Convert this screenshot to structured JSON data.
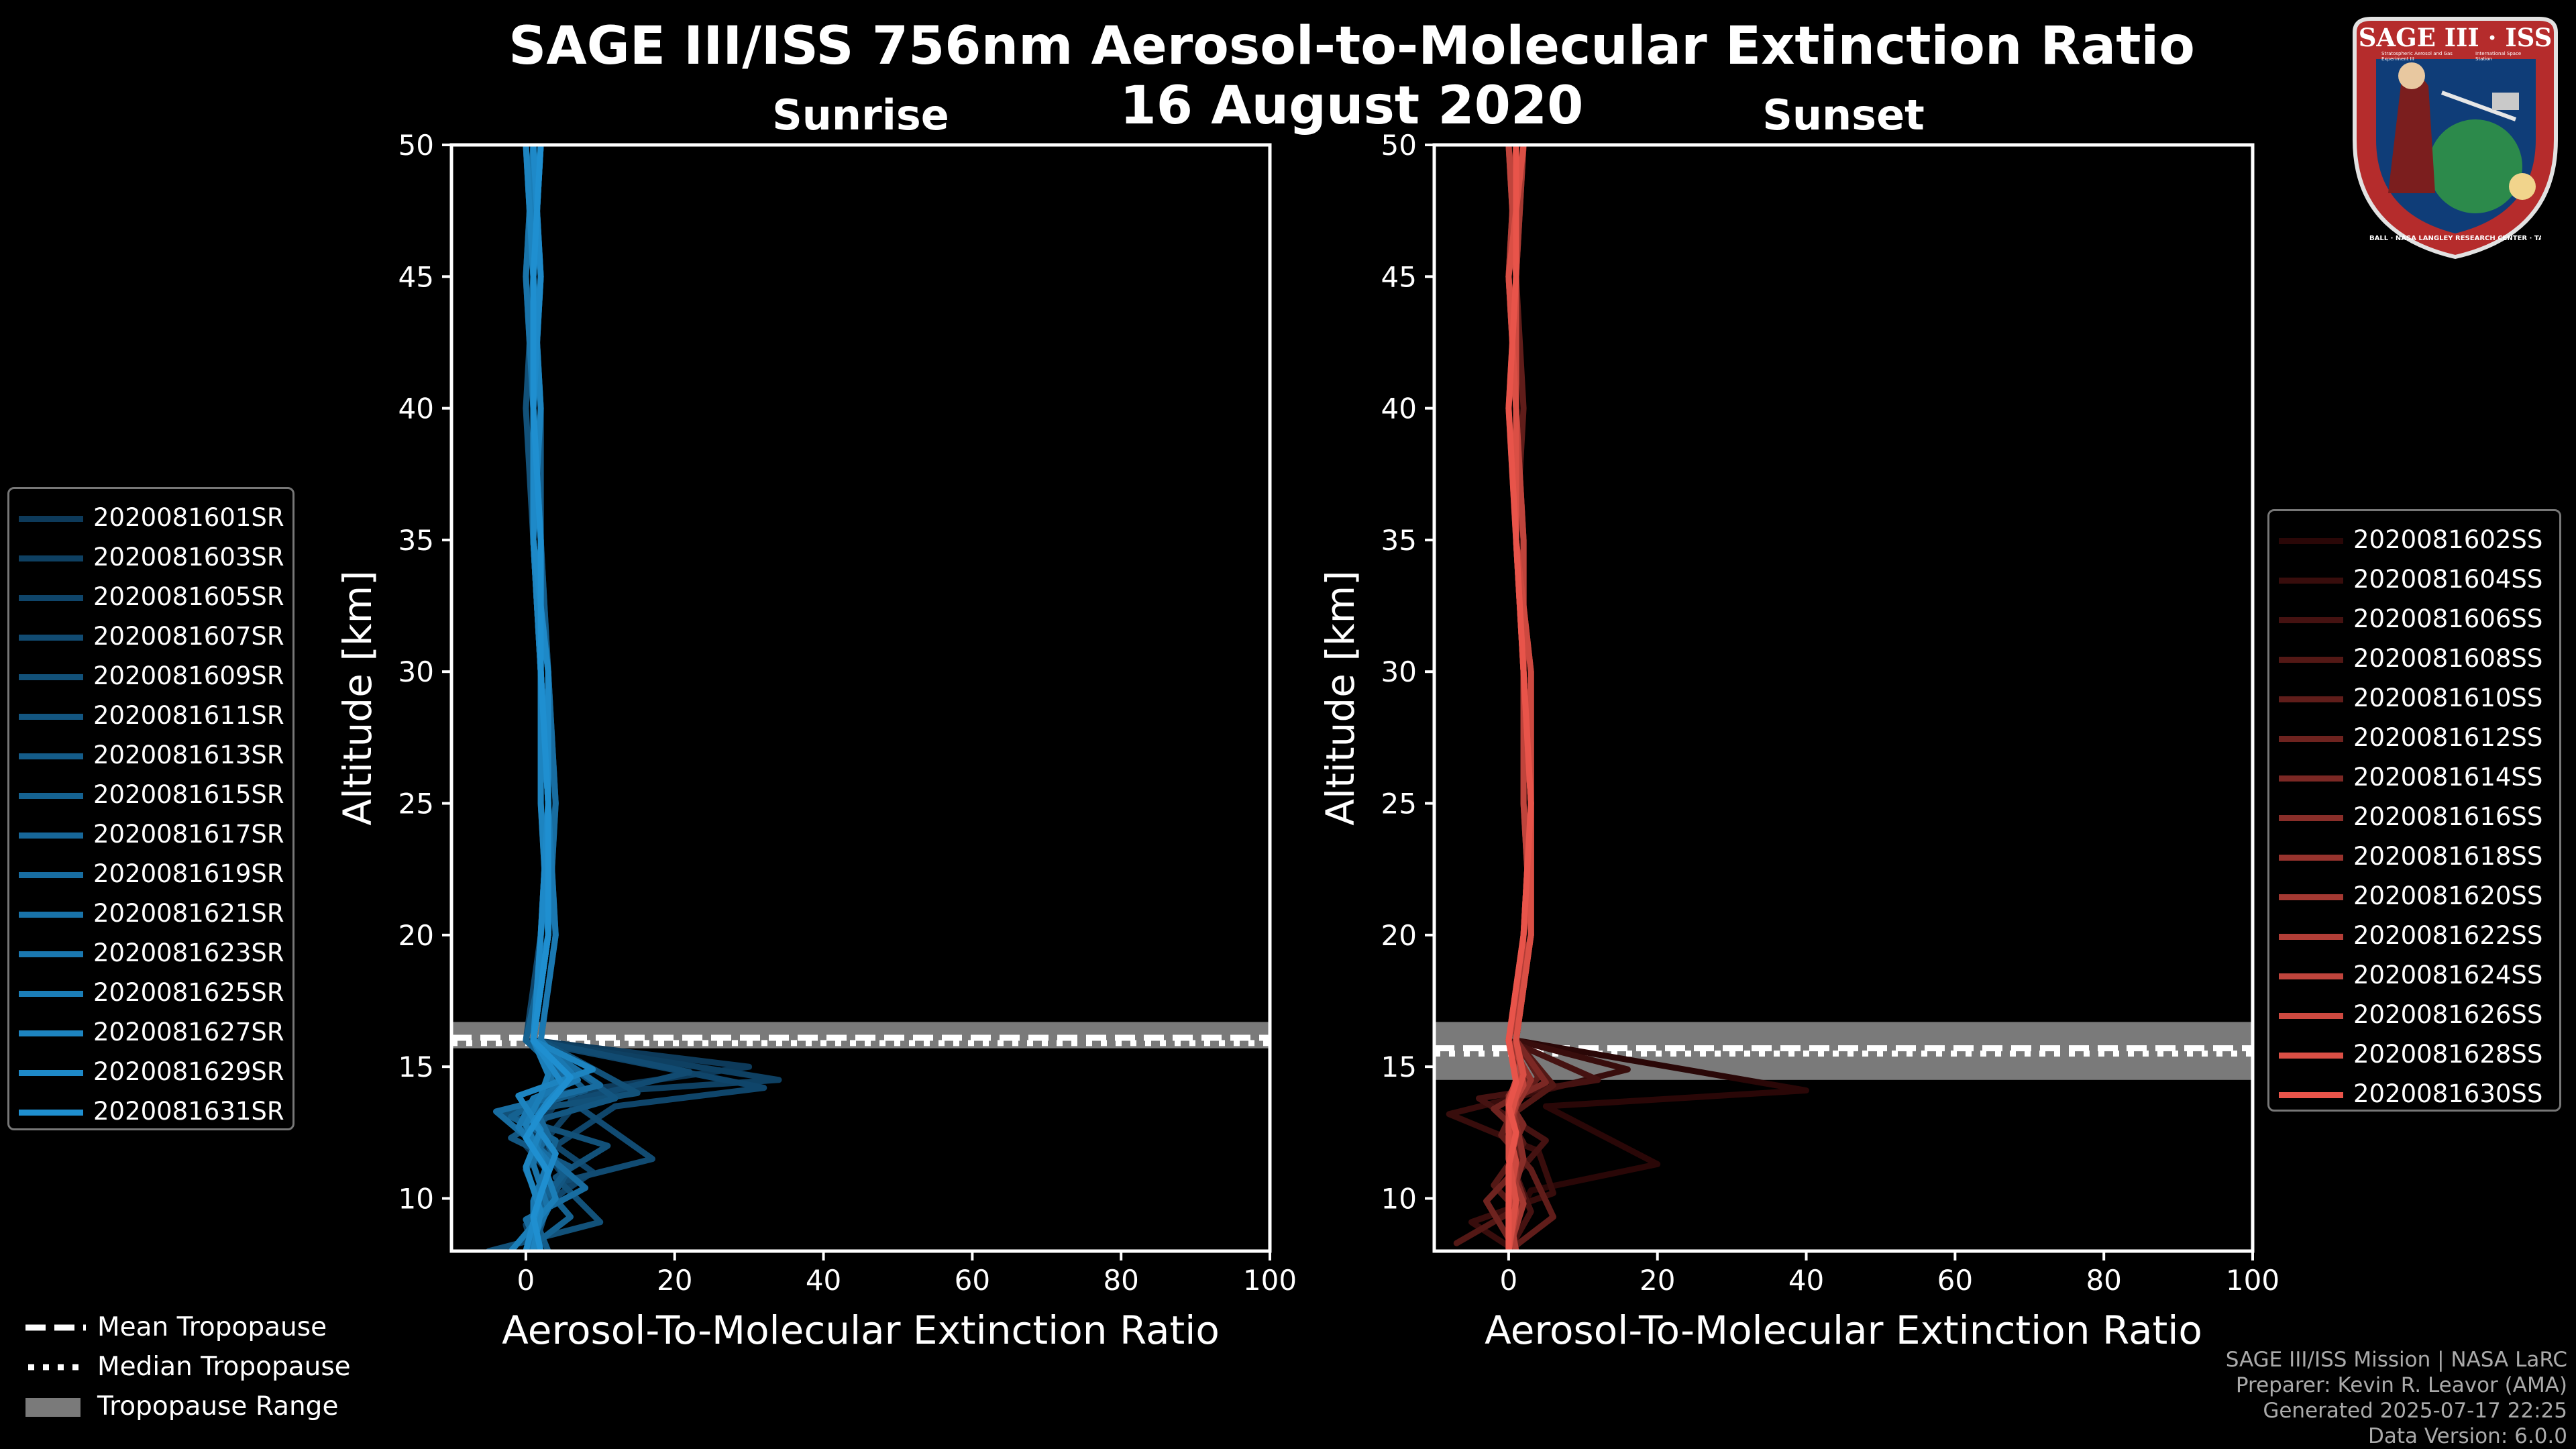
{
  "title_line1": "SAGE III/ISS 756nm Aerosol-to-Molecular Extinction Ratio",
  "title_line2": "16 August 2020",
  "logo": {
    "line1": "SAGE III · ISS",
    "ring_text": "BALL · NASA LANGLEY RESEARCH CENTER · TAS-I · ESA",
    "sub1": "Stratospheric Aerosol and Gas Experiment III",
    "sub2": "International Space Station"
  },
  "footer": {
    "line1": "SAGE III/ISS Mission | NASA LaRC",
    "line2": "Preparer: Kevin R. Leavor (AMA)",
    "line3": "Generated 2025-07-17 22:25",
    "line4": "Data Version: 6.0.0"
  },
  "bottom_legend": {
    "mean": "Mean Tropopause",
    "median": "Median Tropopause",
    "range": "Tropopause Range",
    "range_color": "#7a7a7a"
  },
  "chart_data": [
    {
      "type": "line",
      "title": "Sunrise",
      "xlabel": "Aerosol-To-Molecular Extinction Ratio",
      "ylabel": "Altitude [km]",
      "xlim": [
        -10,
        100
      ],
      "ylim": [
        8,
        50
      ],
      "xticks": [
        0,
        20,
        40,
        60,
        80,
        100
      ],
      "yticks": [
        10,
        15,
        20,
        25,
        30,
        35,
        40,
        45,
        50
      ],
      "tropopause": {
        "range": [
          15.7,
          16.7
        ],
        "mean": 16.1,
        "median": 15.9
      },
      "color_start": "#0d3a5a",
      "color_end": "#1f8fd0",
      "series": [
        {
          "name": "2020081601SR",
          "x": [
            1,
            1,
            2,
            2,
            3,
            4,
            2,
            1,
            30,
            5,
            0,
            3,
            1,
            0
          ],
          "y": [
            50,
            45,
            40,
            35,
            30,
            25,
            20,
            16,
            15,
            14,
            12,
            11,
            9,
            8
          ]
        },
        {
          "name": "2020081603SR",
          "x": [
            2,
            1,
            1,
            1,
            2,
            3,
            3,
            1,
            34,
            8,
            2,
            6,
            0,
            1
          ],
          "y": [
            50,
            45,
            40,
            35,
            30,
            25,
            20,
            16,
            14.5,
            14,
            12,
            10.5,
            9,
            8
          ]
        },
        {
          "name": "2020081605SR",
          "x": [
            0,
            1,
            1,
            2,
            2,
            3,
            2,
            0,
            32,
            12,
            4,
            9,
            1,
            2
          ],
          "y": [
            50,
            45,
            40,
            35,
            30,
            25,
            20,
            16,
            14.2,
            13.5,
            12,
            11,
            9.5,
            8
          ]
        },
        {
          "name": "2020081607SR",
          "x": [
            1,
            2,
            1,
            1,
            3,
            4,
            3,
            1,
            22,
            6,
            17,
            3,
            2,
            0
          ],
          "y": [
            50,
            45,
            40,
            35,
            30,
            25,
            20,
            16,
            14.8,
            13.7,
            11.5,
            10.5,
            9,
            8
          ]
        },
        {
          "name": "2020081609SR",
          "x": [
            2,
            1,
            0,
            1,
            2,
            3,
            4,
            2,
            15,
            -3,
            11,
            4,
            10,
            -5
          ],
          "y": [
            50,
            45,
            40,
            35,
            30,
            25,
            20,
            16,
            14,
            13.2,
            12,
            10.8,
            9.1,
            8
          ]
        },
        {
          "name": "2020081611SR",
          "x": [
            1,
            0,
            1,
            1,
            2,
            3,
            3,
            1,
            12,
            2,
            -2,
            6,
            3,
            1
          ],
          "y": [
            50,
            45,
            40,
            35,
            30,
            25,
            20,
            16,
            13.8,
            13,
            12.3,
            11.2,
            9.8,
            8
          ]
        },
        {
          "name": "2020081613SR",
          "x": [
            1,
            1,
            2,
            2,
            3,
            3,
            2,
            1,
            8,
            0,
            2,
            5,
            1,
            3
          ],
          "y": [
            50,
            45,
            40,
            35,
            30,
            25,
            20,
            16,
            14.1,
            13.4,
            12.6,
            10.9,
            9.4,
            8
          ]
        },
        {
          "name": "2020081615SR",
          "x": [
            0,
            1,
            1,
            1,
            2,
            2,
            3,
            0,
            6,
            -2,
            4,
            2,
            6,
            0
          ],
          "y": [
            50,
            45,
            40,
            35,
            30,
            25,
            20,
            16,
            14.4,
            13.1,
            12.2,
            10.6,
            9.3,
            8
          ]
        },
        {
          "name": "2020081617SR",
          "x": [
            2,
            1,
            1,
            2,
            2,
            3,
            2,
            1,
            5,
            1,
            3,
            0,
            2,
            1
          ],
          "y": [
            50,
            45,
            40,
            35,
            30,
            25,
            20,
            16,
            14.6,
            13.6,
            12.4,
            11.1,
            9.7,
            8
          ]
        },
        {
          "name": "2020081619SR",
          "x": [
            1,
            2,
            1,
            1,
            3,
            4,
            3,
            1,
            10,
            -4,
            1,
            8,
            0,
            2
          ],
          "y": [
            50,
            45,
            40,
            35,
            30,
            25,
            20,
            16,
            14.3,
            13.3,
            12.1,
            10.4,
            9.2,
            8
          ]
        },
        {
          "name": "2020081621SR",
          "x": [
            1,
            0,
            1,
            1,
            2,
            3,
            3,
            1,
            4,
            0,
            2,
            1,
            3,
            0
          ],
          "y": [
            50,
            45,
            40,
            35,
            30,
            25,
            20,
            16,
            14.2,
            13.5,
            12.5,
            11.3,
            9.6,
            8
          ]
        },
        {
          "name": "2020081623SR",
          "x": [
            2,
            1,
            1,
            2,
            2,
            3,
            4,
            2,
            7,
            1,
            -1,
            3,
            1,
            1
          ],
          "y": [
            50,
            45,
            40,
            35,
            30,
            25,
            20,
            16,
            14.5,
            13.8,
            12.7,
            11.4,
            9.9,
            8
          ]
        },
        {
          "name": "2020081625SR",
          "x": [
            1,
            1,
            1,
            1,
            2,
            3,
            3,
            1,
            3,
            2,
            0,
            2,
            4,
            -2
          ],
          "y": [
            50,
            45,
            40,
            35,
            30,
            25,
            20,
            16,
            14.7,
            13.9,
            12.8,
            11.6,
            10,
            8
          ]
        },
        {
          "name": "2020081627SR",
          "x": [
            0,
            1,
            2,
            1,
            2,
            2,
            3,
            1,
            9,
            -1,
            2,
            0,
            2,
            1
          ],
          "y": [
            50,
            45,
            40,
            35,
            30,
            25,
            20,
            16,
            14.9,
            13.9,
            12.6,
            11.2,
            9.5,
            8
          ]
        },
        {
          "name": "2020081629SR",
          "x": [
            1,
            2,
            1,
            1,
            3,
            3,
            2,
            1,
            5,
            3,
            1,
            4,
            2,
            0
          ],
          "y": [
            50,
            45,
            40,
            35,
            30,
            25,
            20,
            16,
            14.3,
            13.7,
            12.9,
            11.7,
            10.2,
            8
          ]
        },
        {
          "name": "2020081631SR",
          "x": [
            2,
            1,
            1,
            2,
            2,
            3,
            3,
            1,
            6,
            2,
            0,
            3,
            1,
            2
          ],
          "y": [
            50,
            45,
            40,
            35,
            30,
            25,
            20,
            16,
            14.6,
            13.2,
            12.3,
            11,
            9.3,
            8
          ]
        }
      ]
    },
    {
      "type": "line",
      "title": "Sunset",
      "xlabel": "Aerosol-To-Molecular Extinction Ratio",
      "ylabel": "Altitude [km]",
      "xlim": [
        -10,
        100
      ],
      "ylim": [
        8,
        50
      ],
      "xticks": [
        0,
        20,
        40,
        60,
        80,
        100
      ],
      "yticks": [
        10,
        15,
        20,
        25,
        30,
        35,
        40,
        45,
        50
      ],
      "tropopause": {
        "range": [
          14.5,
          16.7
        ],
        "mean": 15.7,
        "median": 15.5
      },
      "color_start": "#2a0707",
      "color_end": "#e8544a",
      "series": [
        {
          "name": "2020081602SS",
          "x": [
            1,
            1,
            1,
            1,
            2,
            3,
            3,
            1,
            40,
            5,
            20,
            3,
            1,
            0
          ],
          "y": [
            50,
            45,
            40,
            35,
            30,
            25,
            20,
            16,
            14.1,
            13.5,
            11.3,
            10.3,
            9.2,
            8
          ]
        },
        {
          "name": "2020081604SS",
          "x": [
            2,
            1,
            1,
            2,
            2,
            3,
            2,
            1,
            16,
            -8,
            4,
            6,
            -5,
            1
          ],
          "y": [
            50,
            45,
            40,
            35,
            30,
            25,
            20,
            16,
            14.9,
            13.2,
            11.8,
            10.2,
            9.1,
            8
          ]
        },
        {
          "name": "2020081606SS",
          "x": [
            1,
            0,
            1,
            1,
            2,
            3,
            3,
            0,
            12,
            -4,
            5,
            1,
            3,
            0
          ],
          "y": [
            50,
            45,
            40,
            35,
            30,
            25,
            20,
            16,
            14.5,
            13.8,
            12.2,
            10.9,
            9.5,
            8
          ]
        },
        {
          "name": "2020081608SS",
          "x": [
            0,
            1,
            1,
            1,
            2,
            2,
            3,
            1,
            6,
            0,
            2,
            -2,
            1,
            -7
          ],
          "y": [
            50,
            45,
            40,
            35,
            30,
            25,
            20,
            16,
            14.3,
            13.1,
            12.1,
            10.5,
            9.6,
            8.3
          ]
        },
        {
          "name": "2020081610SS",
          "x": [
            1,
            1,
            2,
            1,
            3,
            3,
            2,
            1,
            4,
            1,
            -1,
            3,
            6,
            0
          ],
          "y": [
            50,
            45,
            40,
            35,
            30,
            25,
            20,
            16,
            14.6,
            13.6,
            12.4,
            11.1,
            9.3,
            8
          ]
        },
        {
          "name": "2020081612SS",
          "x": [
            2,
            1,
            1,
            2,
            2,
            3,
            3,
            0,
            3,
            -2,
            1,
            2,
            -3,
            1
          ],
          "y": [
            50,
            45,
            40,
            35,
            30,
            25,
            20,
            16,
            14.2,
            13.4,
            12.6,
            11.4,
            9.9,
            8
          ]
        },
        {
          "name": "2020081614SS",
          "x": [
            1,
            0,
            1,
            1,
            2,
            3,
            2,
            1,
            5,
            0,
            2,
            0,
            2,
            0
          ],
          "y": [
            50,
            45,
            40,
            35,
            30,
            25,
            20,
            16,
            14.4,
            13.7,
            12.8,
            11.6,
            10,
            8
          ]
        },
        {
          "name": "2020081616SS",
          "x": [
            0,
            1,
            1,
            2,
            2,
            2,
            3,
            1,
            2,
            0,
            1,
            2,
            0,
            1
          ],
          "y": [
            50,
            45,
            40,
            35,
            30,
            25,
            20,
            16,
            14.7,
            13.9,
            12.9,
            11.5,
            9.7,
            8
          ]
        },
        {
          "name": "2020081618SS",
          "x": [
            1,
            1,
            1,
            1,
            3,
            3,
            3,
            0,
            3,
            1,
            0,
            1,
            1,
            0
          ],
          "y": [
            50,
            45,
            40,
            35,
            30,
            25,
            20,
            16,
            14.5,
            13.5,
            12.3,
            11,
            9.4,
            8
          ]
        },
        {
          "name": "2020081620SS",
          "x": [
            2,
            1,
            0,
            1,
            2,
            3,
            2,
            1,
            2,
            0,
            1,
            0,
            2,
            0
          ],
          "y": [
            50,
            45,
            40,
            35,
            30,
            25,
            20,
            16,
            14.8,
            13.8,
            12.5,
            11.2,
            9.8,
            8
          ]
        },
        {
          "name": "2020081622SS",
          "x": [
            1,
            0,
            1,
            1,
            2,
            3,
            3,
            0,
            1,
            1,
            0,
            1,
            0,
            1
          ],
          "y": [
            50,
            45,
            40,
            35,
            30,
            25,
            20,
            16,
            14.6,
            13.6,
            12.7,
            11.3,
            9.6,
            8
          ]
        },
        {
          "name": "2020081624SS",
          "x": [
            0,
            1,
            1,
            2,
            2,
            2,
            3,
            1,
            2,
            0,
            1,
            0,
            1,
            0
          ],
          "y": [
            50,
            45,
            40,
            35,
            30,
            25,
            20,
            16,
            14.3,
            13.3,
            12.4,
            11.1,
            9.5,
            8
          ]
        },
        {
          "name": "2020081626SS",
          "x": [
            1,
            1,
            1,
            1,
            3,
            3,
            2,
            0,
            1,
            0,
            0,
            1,
            0,
            0
          ],
          "y": [
            50,
            45,
            40,
            35,
            30,
            25,
            20,
            16,
            14.5,
            13.7,
            12.6,
            11.4,
            9.8,
            8
          ]
        },
        {
          "name": "2020081628SS",
          "x": [
            2,
            0,
            1,
            1,
            2,
            3,
            3,
            1,
            2,
            1,
            0,
            0,
            1,
            0
          ],
          "y": [
            50,
            45,
            40,
            35,
            30,
            25,
            20,
            16,
            14.7,
            13.9,
            12.8,
            11.5,
            9.9,
            8
          ]
        },
        {
          "name": "2020081630SS",
          "x": [
            1,
            1,
            0,
            1,
            2,
            3,
            2,
            0,
            1,
            0,
            1,
            0,
            0,
            0
          ],
          "y": [
            50,
            45,
            40,
            35,
            30,
            25,
            20,
            16,
            14.4,
            13.5,
            12.5,
            11.2,
            9.7,
            8
          ]
        }
      ]
    }
  ]
}
